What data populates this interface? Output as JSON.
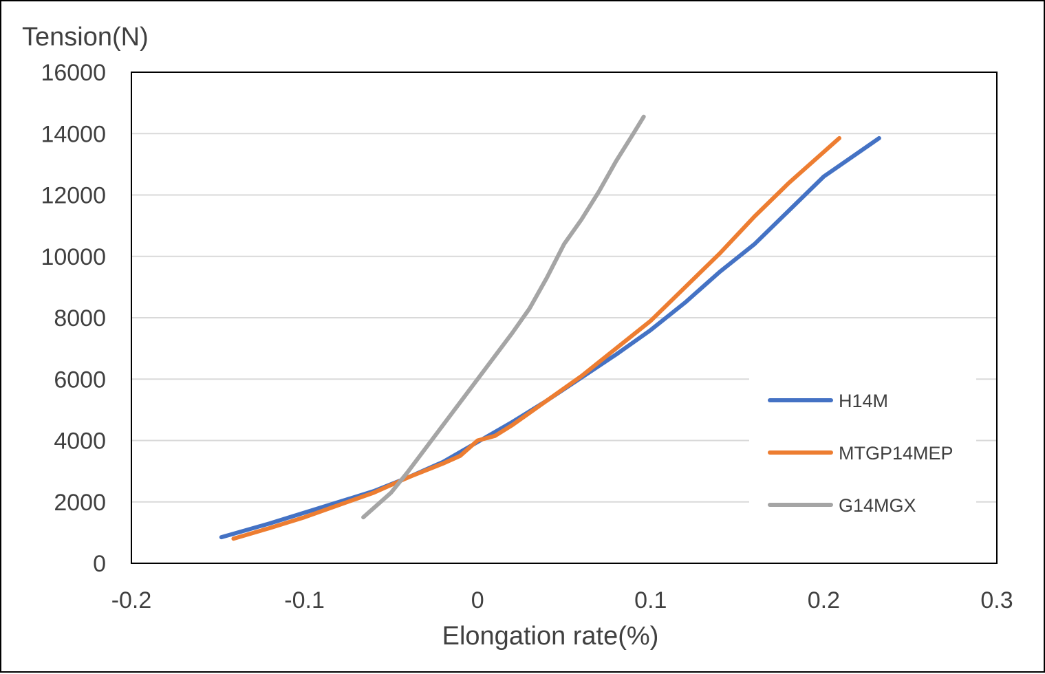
{
  "chart_data": {
    "type": "line",
    "xlabel": "Elongation rate(%)",
    "ylabel": "Tension(N)",
    "xlim": [
      -0.2,
      0.3
    ],
    "ylim": [
      0,
      16000
    ],
    "xticks": [
      "-0.2",
      "-0.1",
      "0",
      "0.1",
      "0.2",
      "0.3"
    ],
    "yticks": [
      "0",
      "2000",
      "4000",
      "6000",
      "8000",
      "10000",
      "12000",
      "14000",
      "16000"
    ],
    "grid": true,
    "legend": "right",
    "series": [
      {
        "name": "H14M",
        "color": "#4472C4",
        "points": [
          [
            -0.148,
            850
          ],
          [
            -0.12,
            1300
          ],
          [
            -0.1,
            1650
          ],
          [
            -0.08,
            2000
          ],
          [
            -0.06,
            2350
          ],
          [
            -0.04,
            2800
          ],
          [
            -0.02,
            3300
          ],
          [
            0.0,
            3950
          ],
          [
            0.02,
            4600
          ],
          [
            0.04,
            5300
          ],
          [
            0.06,
            6050
          ],
          [
            0.08,
            6800
          ],
          [
            0.1,
            7600
          ],
          [
            0.12,
            8500
          ],
          [
            0.14,
            9500
          ],
          [
            0.16,
            10400
          ],
          [
            0.18,
            11500
          ],
          [
            0.2,
            12600
          ],
          [
            0.232,
            13850
          ]
        ]
      },
      {
        "name": "MTGP14MEP",
        "color": "#ED7D31",
        "points": [
          [
            -0.141,
            800
          ],
          [
            -0.12,
            1150
          ],
          [
            -0.1,
            1500
          ],
          [
            -0.08,
            1900
          ],
          [
            -0.06,
            2300
          ],
          [
            -0.04,
            2800
          ],
          [
            -0.02,
            3250
          ],
          [
            -0.01,
            3500
          ],
          [
            0.0,
            4000
          ],
          [
            0.01,
            4150
          ],
          [
            0.02,
            4500
          ],
          [
            0.04,
            5300
          ],
          [
            0.06,
            6100
          ],
          [
            0.08,
            7000
          ],
          [
            0.1,
            7900
          ],
          [
            0.12,
            9000
          ],
          [
            0.14,
            10100
          ],
          [
            0.16,
            11300
          ],
          [
            0.18,
            12400
          ],
          [
            0.209,
            13850
          ]
        ]
      },
      {
        "name": "G14MGX",
        "color": "#A5A5A5",
        "points": [
          [
            -0.066,
            1500
          ],
          [
            -0.05,
            2300
          ],
          [
            -0.04,
            3000
          ],
          [
            -0.02,
            4500
          ],
          [
            0.0,
            6000
          ],
          [
            0.02,
            7500
          ],
          [
            0.03,
            8300
          ],
          [
            0.04,
            9300
          ],
          [
            0.05,
            10400
          ],
          [
            0.06,
            11200
          ],
          [
            0.07,
            12100
          ],
          [
            0.08,
            13100
          ],
          [
            0.09,
            14000
          ],
          [
            0.096,
            14550
          ]
        ]
      }
    ]
  }
}
